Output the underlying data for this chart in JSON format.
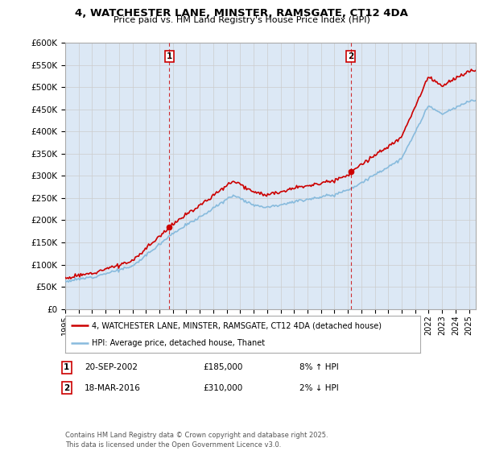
{
  "title": "4, WATCHESTER LANE, MINSTER, RAMSGATE, CT12 4DA",
  "subtitle": "Price paid vs. HM Land Registry's House Price Index (HPI)",
  "legend_property": "4, WATCHESTER LANE, MINSTER, RAMSGATE, CT12 4DA (detached house)",
  "legend_hpi": "HPI: Average price, detached house, Thanet",
  "annotation1_date": "20-SEP-2002",
  "annotation1_price": "£185,000",
  "annotation1_hpi": "8% ↑ HPI",
  "annotation2_date": "18-MAR-2016",
  "annotation2_price": "£310,000",
  "annotation2_hpi": "2% ↓ HPI",
  "footer": "Contains HM Land Registry data © Crown copyright and database right 2025.\nThis data is licensed under the Open Government Licence v3.0.",
  "ylim": [
    0,
    600000
  ],
  "yticks": [
    0,
    50000,
    100000,
    150000,
    200000,
    250000,
    300000,
    350000,
    400000,
    450000,
    500000,
    550000,
    600000
  ],
  "property_color": "#cc0000",
  "hpi_color": "#88bbdd",
  "background_color": "#dce8f5",
  "purchase1_x": 2002.72,
  "purchase1_y": 185000,
  "purchase2_x": 2016.21,
  "purchase2_y": 310000,
  "xmin": 1995,
  "xmax": 2025.5
}
